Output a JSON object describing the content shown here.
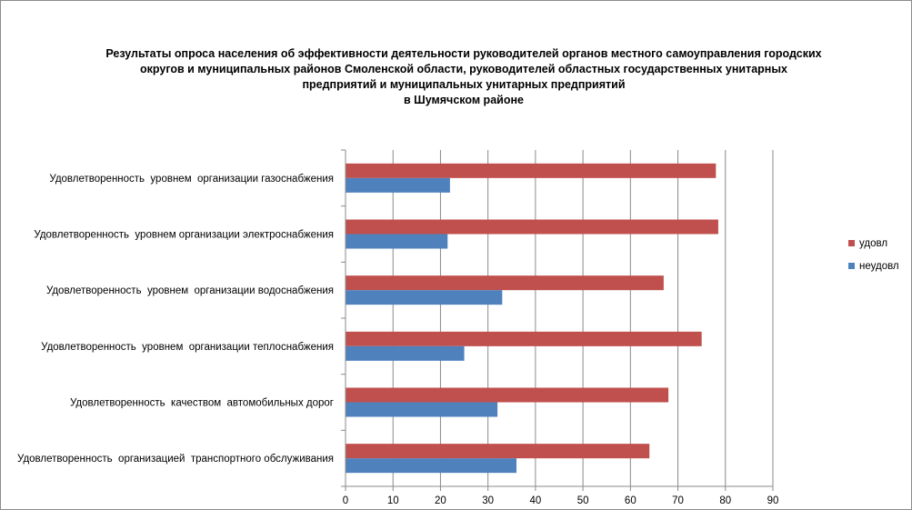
{
  "chart_data": {
    "type": "bar",
    "orientation": "horizontal",
    "title_lines": [
      "Результаты опроса населения об эффективности деятельности руководителей органов местного самоуправления городских",
      "округов и муниципальных районов Смоленской области, руководителей областных государственных унитарных",
      "предприятий и муниципальных унитарных предприятий",
      "в Шумячском районе"
    ],
    "categories": [
      "Удовлетворенность  уровнем  организации газоснабжения",
      "Удовлетворенность  уровнем организации электроснабжения",
      "Удовлетворенность  уровнем  организации водоснабжения",
      "Удовлетворенность  уровнем  организации теплоснабжения",
      "Удовлетворенность  качеством  автомобильных дорог",
      "Удовлетворенность  организацией  транспортного обслуживания"
    ],
    "series": [
      {
        "name": "удовл",
        "color": "#c0504d",
        "values": [
          78,
          78.5,
          67,
          75,
          68,
          64
        ]
      },
      {
        "name": "неудовл",
        "color": "#4f81bd",
        "values": [
          22,
          21.5,
          33,
          25,
          32,
          36
        ]
      }
    ],
    "xlim": [
      0,
      90
    ],
    "xticks": [
      0,
      10,
      20,
      30,
      40,
      50,
      60,
      70,
      80,
      90
    ],
    "grid": true,
    "legend_position": "right"
  }
}
